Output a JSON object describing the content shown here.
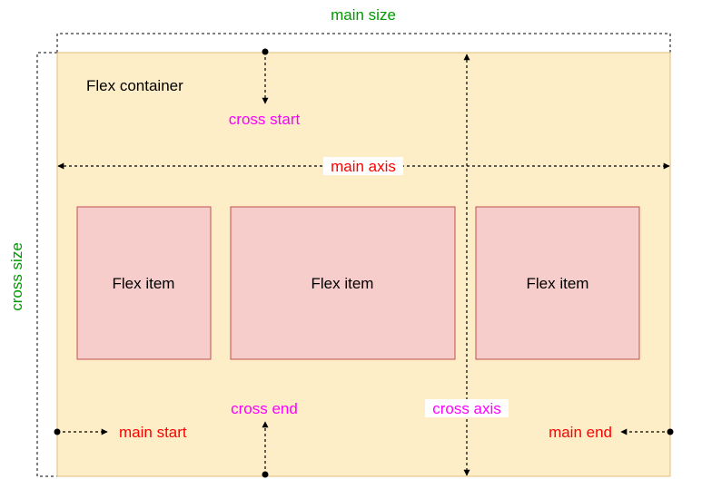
{
  "diagram": {
    "container_label": "Flex container",
    "items": [
      {
        "label": "Flex item"
      },
      {
        "label": "Flex item"
      },
      {
        "label": "Flex item"
      }
    ],
    "labels": {
      "main_size": "main size",
      "cross_size": "cross size",
      "main_axis": "main axis",
      "cross_axis": "cross axis",
      "cross_start": "cross start",
      "cross_end": "cross end",
      "main_start": "main start",
      "main_end": "main end"
    },
    "colors": {
      "container_fill": "#fdeec8",
      "container_stroke": "#e3bf7a",
      "item_fill": "#f6cdcb",
      "item_stroke": "#c2504f",
      "size_label": "#009900",
      "axis_label": "#ff0000",
      "cross_label": "#ff00ff",
      "text": "#000000",
      "arrow": "#000000"
    }
  }
}
